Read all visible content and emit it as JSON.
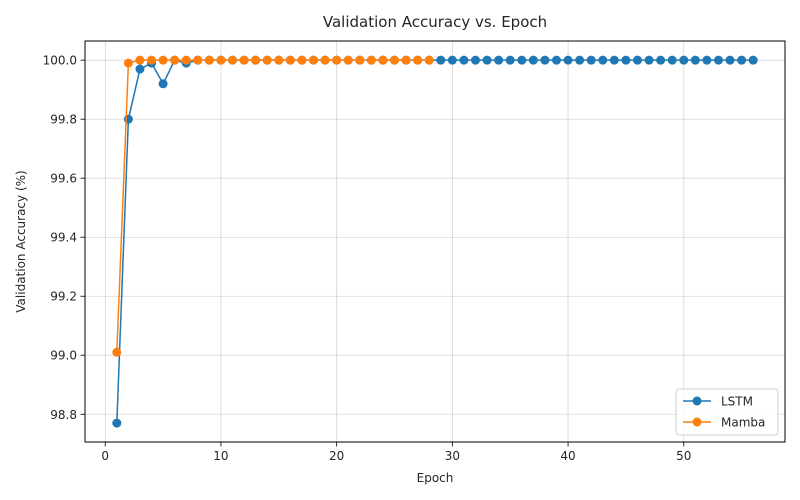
{
  "chart_data": {
    "type": "line",
    "title": "Validation Accuracy vs. Epoch",
    "xlabel": "Epoch",
    "ylabel": "Validation Accuracy (%)",
    "xlim": [
      -1.75,
      58.75
    ],
    "ylim": [
      98.706,
      100.065
    ],
    "xticks": [
      0,
      10,
      20,
      30,
      40,
      50
    ],
    "yticks": [
      98.8,
      99.0,
      99.2,
      99.4,
      99.6,
      99.8,
      100.0
    ],
    "ytick_labels": [
      "98.8",
      "99.0",
      "99.2",
      "99.4",
      "99.6",
      "99.8",
      "100.0"
    ],
    "grid": true,
    "legend_position": "lower-right",
    "series": [
      {
        "name": "LSTM",
        "color": "#1f77b4",
        "x": [
          1,
          2,
          3,
          4,
          5,
          6,
          7,
          8,
          9,
          10,
          11,
          12,
          13,
          14,
          15,
          16,
          17,
          18,
          19,
          20,
          21,
          22,
          23,
          24,
          25,
          26,
          27,
          28,
          29,
          30,
          31,
          32,
          33,
          34,
          35,
          36,
          37,
          38,
          39,
          40,
          41,
          42,
          43,
          44,
          45,
          46,
          47,
          48,
          49,
          50,
          51,
          52,
          53,
          54,
          55,
          56
        ],
        "y": [
          98.77,
          99.8,
          99.97,
          99.99,
          99.92,
          100.0,
          99.99,
          100.0,
          100.0,
          100.0,
          100.0,
          100.0,
          100.0,
          100.0,
          100.0,
          100.0,
          100.0,
          100.0,
          100.0,
          100.0,
          100.0,
          100.0,
          100.0,
          100.0,
          100.0,
          100.0,
          100.0,
          100.0,
          100.0,
          100.0,
          100.0,
          100.0,
          100.0,
          100.0,
          100.0,
          100.0,
          100.0,
          100.0,
          100.0,
          100.0,
          100.0,
          100.0,
          100.0,
          100.0,
          100.0,
          100.0,
          100.0,
          100.0,
          100.0,
          100.0,
          100.0,
          100.0,
          100.0,
          100.0,
          100.0,
          100.0
        ]
      },
      {
        "name": "Mamba",
        "color": "#ff7f0e",
        "x": [
          1,
          2,
          3,
          4,
          5,
          6,
          7,
          8,
          9,
          10,
          11,
          12,
          13,
          14,
          15,
          16,
          17,
          18,
          19,
          20,
          21,
          22,
          23,
          24,
          25,
          26,
          27,
          28
        ],
        "y": [
          99.01,
          99.99,
          100.0,
          100.0,
          100.0,
          100.0,
          100.0,
          100.0,
          100.0,
          100.0,
          100.0,
          100.0,
          100.0,
          100.0,
          100.0,
          100.0,
          100.0,
          100.0,
          100.0,
          100.0,
          100.0,
          100.0,
          100.0,
          100.0,
          100.0,
          100.0,
          100.0,
          100.0
        ]
      }
    ]
  }
}
